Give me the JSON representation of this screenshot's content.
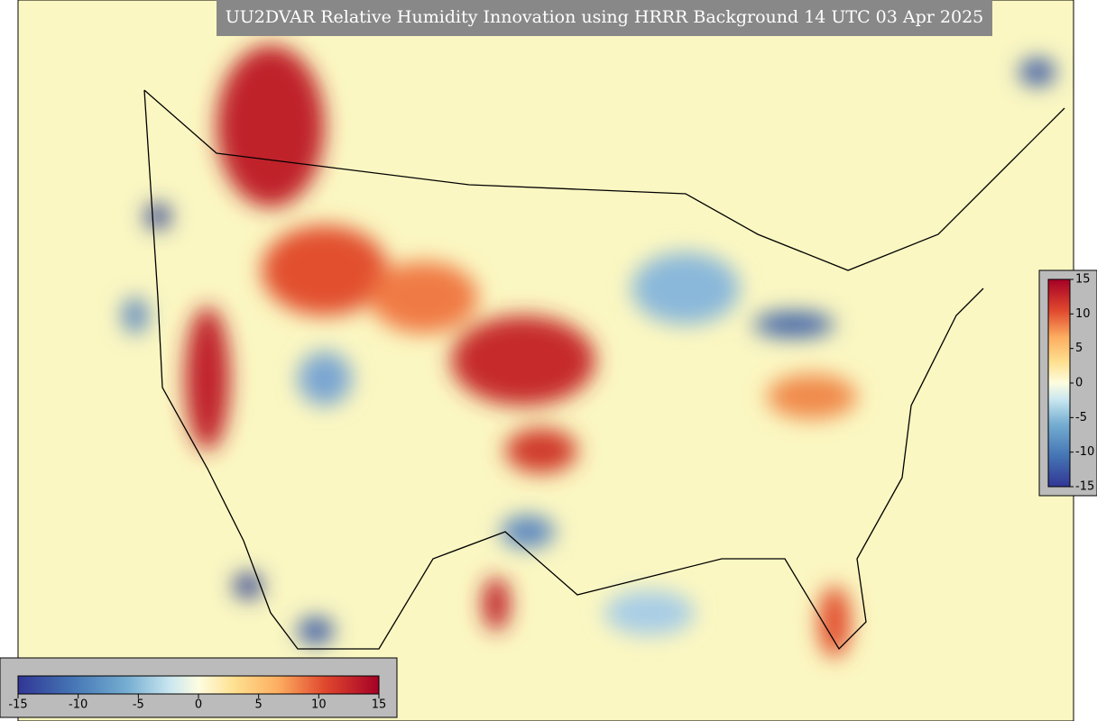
{
  "title": "UU2DVAR Relative Humidity Innovation using HRRR Background 14 UTC 03 Apr 2025",
  "colorbar_horizontal": {
    "ticks": [
      -15,
      -10,
      -5,
      0,
      5,
      10,
      15
    ]
  },
  "colorbar_vertical": {
    "ticks": [
      15,
      10,
      5,
      0,
      -5,
      -10,
      -15
    ]
  }
}
